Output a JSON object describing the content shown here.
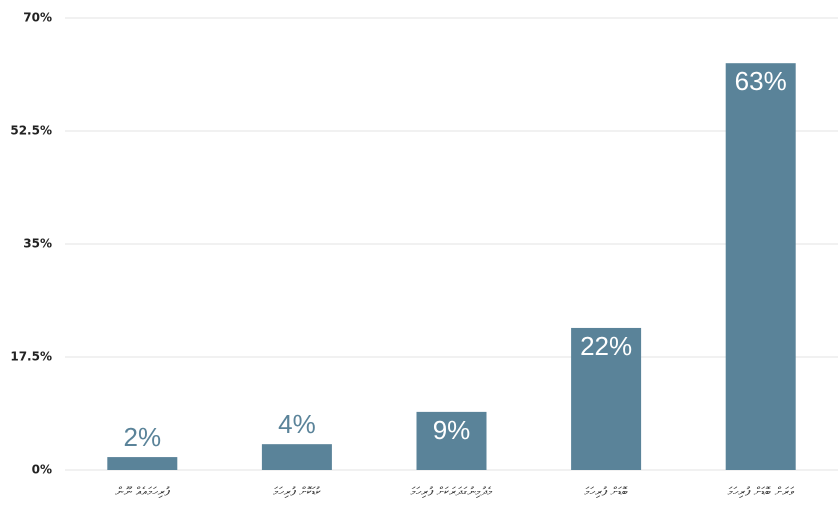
{
  "chart_data": {
    "type": "bar",
    "categories": [
      "ފުރިހަމައެއް ނޫން",
      "ކުޑަކޮށް ފުރިހަމަ",
      "މެދުމިނުގަދަރަކަށް ފުރިހަމަ",
      "ބޮޑަށް ފުރިހަމަ",
      "ވަރަށް ބޮޑަށް ފުރިހަމަ"
    ],
    "values": [
      2,
      4,
      9,
      22,
      63
    ],
    "value_labels": [
      "2%",
      "4%",
      "9%",
      "22%",
      "63%"
    ],
    "color": "#5a8399",
    "ylim": [
      0,
      70
    ],
    "yticks": [
      {
        "value": 0,
        "label": "0%"
      },
      {
        "value": 17.5,
        "label": "17.5%"
      },
      {
        "value": 35,
        "label": "35%"
      },
      {
        "value": 52.5,
        "label": "52.5%"
      },
      {
        "value": 70,
        "label": "70%"
      }
    ],
    "grid": true
  }
}
